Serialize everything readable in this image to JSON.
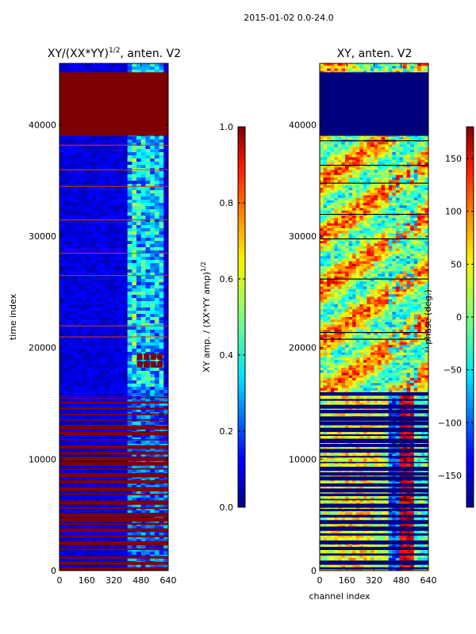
{
  "suptitle": "2015-01-02 0.0-24.0",
  "colors": {
    "frame": "#000000",
    "saturated": "#7f0000",
    "low": "#00007f"
  },
  "chart_data": [
    {
      "type": "heatmap",
      "title_main": "XY/(XX*YY)",
      "title_sup": "1/2",
      "title_suffix": ", anten. V2",
      "xlabel": "",
      "ylabel": "time index",
      "xlim": [
        0,
        640
      ],
      "ylim": [
        0,
        45500
      ],
      "xticks": [
        0,
        160,
        320,
        480,
        640
      ],
      "yticks": [
        0,
        10000,
        20000,
        30000,
        40000
      ],
      "colorbar": {
        "label_main": "XY amp. / (XX*YY amp)",
        "label_sup": "1/2",
        "range": [
          0.0,
          1.0
        ],
        "ticks": [
          "0.0",
          "0.2",
          "0.4",
          "0.6",
          "0.8",
          "1.0"
        ],
        "tick_values": [
          0.0,
          0.2,
          0.4,
          0.6,
          0.8,
          1.0
        ]
      },
      "features": {
        "flagged_block_time_range": [
          39000,
          44700
        ],
        "flagged_rows_below_time": 16000
      }
    },
    {
      "type": "heatmap",
      "title": "XY, anten. V2",
      "xlabel": "channel index",
      "ylabel": "",
      "xlim": [
        0,
        640
      ],
      "ylim": [
        0,
        45500
      ],
      "xticks": [
        0,
        160,
        320,
        480,
        640
      ],
      "yticks": [
        0,
        10000,
        20000,
        30000,
        40000
      ],
      "colorbar": {
        "label": "phase (deg.)",
        "range": [
          -180,
          180
        ],
        "ticks": [
          "−150",
          "−100",
          "−50",
          "0",
          "50",
          "100",
          "150"
        ],
        "tick_values": [
          -150,
          -100,
          -50,
          0,
          50,
          100,
          150
        ]
      },
      "features": {
        "flagged_block_time_range": [
          39000,
          44700
        ]
      }
    }
  ]
}
